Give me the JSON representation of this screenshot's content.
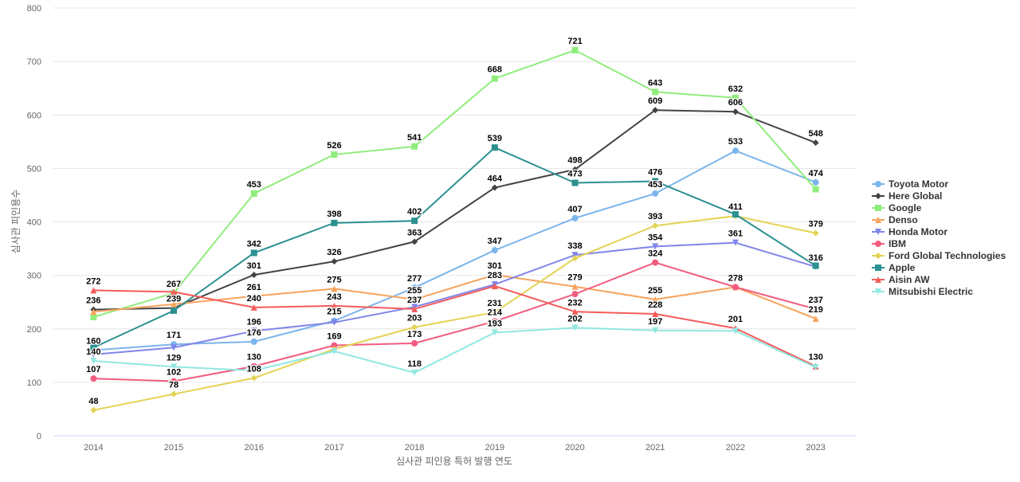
{
  "chart_data": {
    "type": "line",
    "title": "",
    "xlabel": "심사관 피인용 특허 발행 연도",
    "ylabel": "심사관 피인용수",
    "ylim": [
      0,
      800
    ],
    "yticks": [
      0,
      100,
      200,
      300,
      400,
      500,
      600,
      700,
      800
    ],
    "grid": true,
    "legend_position": "right",
    "categories": [
      "2014",
      "2015",
      "2016",
      "2017",
      "2018",
      "2019",
      "2020",
      "2021",
      "2022",
      "2023"
    ],
    "series": [
      {
        "name": "Toyota Motor",
        "color": "#7cb5ec",
        "marker": "circle",
        "values": [
          160,
          171,
          176,
          215,
          277,
          347,
          407,
          453,
          533,
          474
        ]
      },
      {
        "name": "Here Global",
        "color": "#434348",
        "marker": "diamond",
        "values": [
          236,
          239,
          301,
          326,
          363,
          464,
          498,
          609,
          606,
          548
        ]
      },
      {
        "name": "Google",
        "color": "#90ed7d",
        "marker": "square",
        "values": [
          222,
          267,
          453,
          526,
          541,
          668,
          721,
          643,
          632,
          461
        ]
      },
      {
        "name": "Denso",
        "color": "#f7a35c",
        "marker": "triangle",
        "values": [
          232,
          246,
          261,
          275,
          255,
          301,
          279,
          255,
          278,
          219
        ]
      },
      {
        "name": "Honda Motor",
        "color": "#8085e9",
        "marker": "triangle-down",
        "values": [
          152,
          165,
          196,
          212,
          241,
          283,
          338,
          354,
          361,
          316
        ]
      },
      {
        "name": "IBM",
        "color": "#f15c80",
        "marker": "circle",
        "values": [
          107,
          102,
          130,
          169,
          173,
          214,
          265,
          324,
          278,
          237
        ]
      },
      {
        "name": "Ford Global Technologies",
        "color": "#e4d354",
        "marker": "diamond",
        "values": [
          48,
          78,
          108,
          162,
          203,
          231,
          332,
          393,
          411,
          379
        ]
      },
      {
        "name": "Apple",
        "color": "#2b908f",
        "marker": "square",
        "values": [
          165,
          234,
          342,
          398,
          402,
          539,
          473,
          476,
          414,
          318
        ]
      },
      {
        "name": "Aisin AW",
        "color": "#f45b5b",
        "marker": "triangle",
        "values": [
          272,
          269,
          240,
          243,
          237,
          280,
          232,
          228,
          201,
          130
        ]
      },
      {
        "name": "Mitsubishi Electric",
        "color": "#91e8e1",
        "marker": "triangle-down",
        "values": [
          140,
          129,
          122,
          158,
          118,
          193,
          202,
          197,
          196,
          128
        ]
      }
    ]
  }
}
